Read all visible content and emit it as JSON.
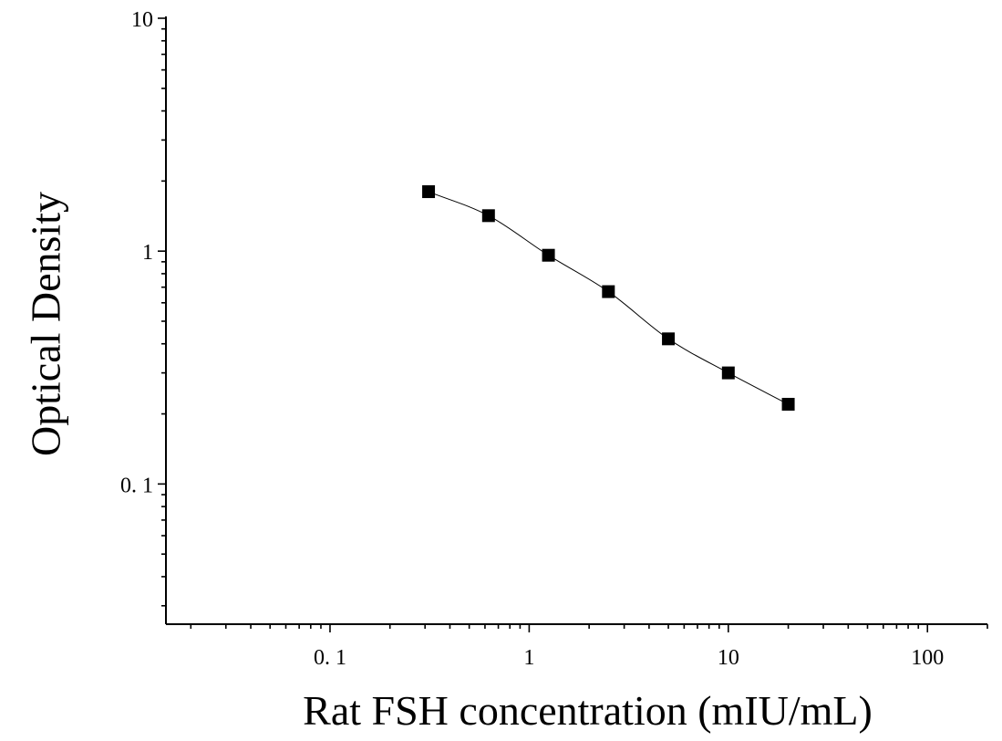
{
  "chart_data": {
    "type": "scatter",
    "xlabel": "Rat FSH concentration (mIU/mL)",
    "ylabel": "Optical Density",
    "xscale": "log",
    "yscale": "log",
    "xlim": [
      0.015,
      200
    ],
    "ylim": [
      0.025,
      10
    ],
    "x_tick_labels": [
      "0. 1",
      "1",
      "10",
      "100"
    ],
    "y_tick_labels": [
      "10",
      "1",
      "0. 1"
    ],
    "grid": false,
    "legend": "none",
    "marker": "square",
    "marker_color": "#000000",
    "line_color": "#000000",
    "series": [
      {
        "x": [
          0.3125,
          0.625,
          1.25,
          2.5,
          5,
          10,
          20
        ],
        "y": [
          1.8,
          1.42,
          0.96,
          0.67,
          0.42,
          0.3,
          0.22
        ]
      }
    ],
    "fit_curve": "smooth"
  }
}
